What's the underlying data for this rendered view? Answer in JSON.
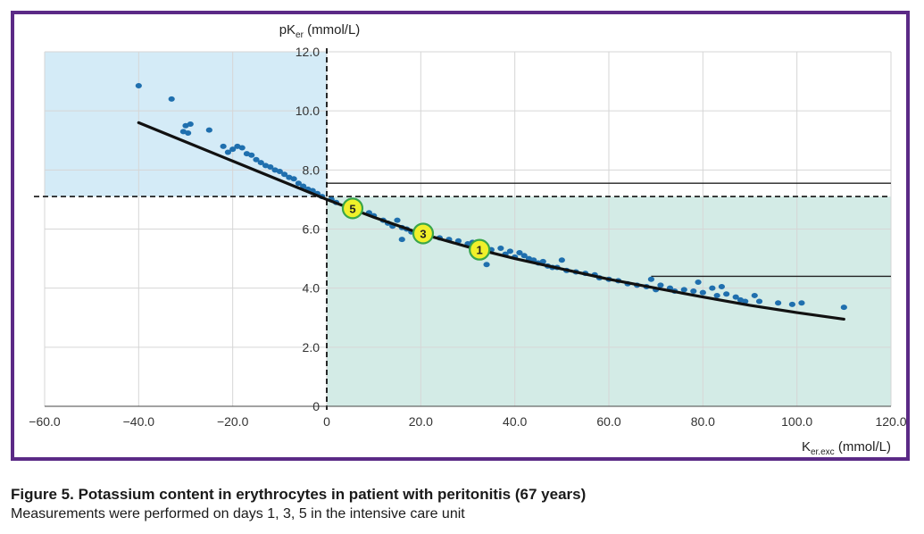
{
  "colors": {
    "frame": "#5b2a86",
    "region_upper_left": "#d4ebf7",
    "region_lower_right": "#d3ebe6",
    "points": "#1f6fae",
    "curve": "#111111",
    "marker_fill": "#f0f02a",
    "marker_stroke": "#3aa64a",
    "grid": "#d6d6d6"
  },
  "caption": {
    "title": "Figure 5. Potassium content in erythrocytes in patient with peritonitis (67 years)",
    "subtitle": "Measurements were performed on days 1, 3, 5 in the intensive care unit"
  },
  "chart_data": {
    "type": "scatter",
    "ylabel_main": "pK",
    "ylabel_sub": "er",
    "ylabel_unit": " (mmol/L)",
    "xlabel_main": "K",
    "xlabel_sub": "er.exc",
    "xlabel_unit": " (mmol/L)",
    "xlim": [
      -60,
      120
    ],
    "ylim": [
      0,
      12
    ],
    "x_ticks": [
      {
        "value": -60,
        "label": "−60.0"
      },
      {
        "value": -40,
        "label": "−40.0"
      },
      {
        "value": -20,
        "label": "−20.0"
      },
      {
        "value": 0,
        "label": "0"
      },
      {
        "value": 20,
        "label": "20.0"
      },
      {
        "value": 40,
        "label": "40.0"
      },
      {
        "value": 60,
        "label": "60.0"
      },
      {
        "value": 80,
        "label": "80.0"
      },
      {
        "value": 100,
        "label": "100.0"
      },
      {
        "value": 120,
        "label": "120.0"
      }
    ],
    "y_ticks": [
      {
        "value": 0,
        "label": "0"
      },
      {
        "value": 2,
        "label": "2.0"
      },
      {
        "value": 4,
        "label": "4.0"
      },
      {
        "value": 6,
        "label": "6.0"
      },
      {
        "value": 8,
        "label": "8.0"
      },
      {
        "value": 10,
        "label": "10.0"
      },
      {
        "value": 12,
        "label": "12.0"
      }
    ],
    "grid": true,
    "reference_lines": {
      "horizontal_dashed_y": 7.1,
      "vertical_dashed_x": 0,
      "horizontal_solid": [
        {
          "y": 7.55,
          "x_from": 0,
          "x_to": 120
        },
        {
          "y": 4.4,
          "x_from": 69,
          "x_to": 120
        }
      ]
    },
    "shaded_regions": [
      {
        "name": "upper-left",
        "x": [
          -60,
          0
        ],
        "y": [
          7.1,
          12
        ]
      },
      {
        "name": "lower-right",
        "x": [
          0,
          120
        ],
        "y": [
          0,
          7.1
        ]
      }
    ],
    "series": [
      {
        "type": "scatter",
        "points": [
          [
            -40,
            10.85
          ],
          [
            -33,
            10.4
          ],
          [
            -30,
            9.5
          ],
          [
            -29,
            9.55
          ],
          [
            -30.5,
            9.3
          ],
          [
            -29.5,
            9.25
          ],
          [
            -25,
            9.35
          ],
          [
            -22,
            8.8
          ],
          [
            -20,
            8.7
          ],
          [
            -19,
            8.8
          ],
          [
            -18,
            8.75
          ],
          [
            -17,
            8.55
          ],
          [
            -21,
            8.6
          ],
          [
            -16,
            8.5
          ],
          [
            -15,
            8.35
          ],
          [
            -14,
            8.25
          ],
          [
            -13,
            8.15
          ],
          [
            -12,
            8.1
          ],
          [
            -11,
            8.0
          ],
          [
            -10,
            7.95
          ],
          [
            -9,
            7.85
          ],
          [
            -8,
            7.75
          ],
          [
            -7,
            7.7
          ],
          [
            -6,
            7.55
          ],
          [
            -5,
            7.45
          ],
          [
            -4,
            7.35
          ],
          [
            -3,
            7.3
          ],
          [
            -2,
            7.2
          ],
          [
            -1,
            7.1
          ],
          [
            1,
            7.0
          ],
          [
            2,
            6.9
          ],
          [
            4,
            6.8
          ],
          [
            7,
            6.7
          ],
          [
            9,
            6.55
          ],
          [
            10,
            6.45
          ],
          [
            12,
            6.3
          ],
          [
            13,
            6.2
          ],
          [
            14,
            6.1
          ],
          [
            15,
            6.3
          ],
          [
            16,
            6.05
          ],
          [
            17,
            6.0
          ],
          [
            16,
            5.65
          ],
          [
            18,
            5.9
          ],
          [
            19,
            5.8
          ],
          [
            22,
            5.75
          ],
          [
            24,
            5.7
          ],
          [
            26,
            5.65
          ],
          [
            28,
            5.6
          ],
          [
            30,
            5.5
          ],
          [
            31,
            5.55
          ],
          [
            33,
            5.4
          ],
          [
            34,
            4.8
          ],
          [
            35,
            5.3
          ],
          [
            37,
            5.35
          ],
          [
            38,
            5.15
          ],
          [
            39,
            5.25
          ],
          [
            40,
            5.05
          ],
          [
            41,
            5.2
          ],
          [
            42,
            5.1
          ],
          [
            43,
            5.0
          ],
          [
            44,
            4.95
          ],
          [
            45,
            4.85
          ],
          [
            46,
            4.9
          ],
          [
            47,
            4.75
          ],
          [
            48,
            4.7
          ],
          [
            49,
            4.7
          ],
          [
            50,
            4.95
          ],
          [
            51,
            4.6
          ],
          [
            53,
            4.55
          ],
          [
            55,
            4.5
          ],
          [
            57,
            4.45
          ],
          [
            58,
            4.35
          ],
          [
            60,
            4.3
          ],
          [
            62,
            4.25
          ],
          [
            64,
            4.15
          ],
          [
            66,
            4.1
          ],
          [
            68,
            4.05
          ],
          [
            69,
            4.3
          ],
          [
            70,
            3.95
          ],
          [
            71,
            4.1
          ],
          [
            73,
            4.0
          ],
          [
            74,
            3.9
          ],
          [
            76,
            3.95
          ],
          [
            78,
            3.9
          ],
          [
            79,
            4.2
          ],
          [
            80,
            3.85
          ],
          [
            82,
            4.0
          ],
          [
            83,
            3.75
          ],
          [
            84,
            4.05
          ],
          [
            85,
            3.8
          ],
          [
            87,
            3.7
          ],
          [
            88,
            3.6
          ],
          [
            89,
            3.55
          ],
          [
            91,
            3.75
          ],
          [
            92,
            3.55
          ],
          [
            96,
            3.5
          ],
          [
            99,
            3.45
          ],
          [
            101,
            3.5
          ],
          [
            110,
            3.35
          ]
        ]
      },
      {
        "type": "line",
        "points": [
          [
            -40,
            9.6
          ],
          [
            -30,
            8.95
          ],
          [
            -20,
            8.3
          ],
          [
            -10,
            7.65
          ],
          [
            0,
            7.0
          ],
          [
            10,
            6.4
          ],
          [
            20,
            5.85
          ],
          [
            30,
            5.4
          ],
          [
            40,
            5.0
          ],
          [
            50,
            4.65
          ],
          [
            60,
            4.3
          ],
          [
            70,
            4.0
          ],
          [
            80,
            3.7
          ],
          [
            90,
            3.42
          ],
          [
            100,
            3.17
          ],
          [
            110,
            2.95
          ]
        ]
      }
    ],
    "day_markers": [
      {
        "label": "1",
        "x": 32.5,
        "y": 5.3
      },
      {
        "label": "3",
        "x": 20.5,
        "y": 5.85
      },
      {
        "label": "5",
        "x": 5.5,
        "y": 6.7
      }
    ]
  }
}
